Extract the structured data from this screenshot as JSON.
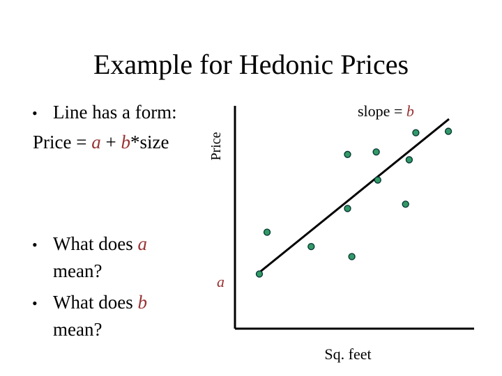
{
  "title": "Example for Hedonic Prices",
  "bullets": {
    "symbol": "•",
    "line_form": "Line has a form:",
    "price_eq": {
      "lhs": "Price = ",
      "a": "a",
      "plus": " + ",
      "b": "b",
      "rhs": "*size"
    },
    "q1": {
      "pre": "What does ",
      "var": "a",
      "post": "mean?"
    },
    "q2": {
      "pre": "What does ",
      "var": "b",
      "post": "mean?"
    }
  },
  "colors": {
    "accent": "#993333",
    "point_fill": "#339966",
    "point_stroke": "#003333",
    "axis": "#000000"
  },
  "chart_data": {
    "type": "scatter",
    "xlabel": "Sq. feet",
    "ylabel": "Price",
    "xlim": [
      0,
      100
    ],
    "ylim": [
      0,
      100
    ],
    "grid": false,
    "legend": "none",
    "points": [
      {
        "x": 11.4,
        "y": 26.7
      },
      {
        "x": 15.0,
        "y": 47.1
      },
      {
        "x": 35.6,
        "y": 40.1
      },
      {
        "x": 52.6,
        "y": 58.7
      },
      {
        "x": 54.6,
        "y": 35.2
      },
      {
        "x": 52.6,
        "y": 85.1
      },
      {
        "x": 66.7,
        "y": 72.6
      },
      {
        "x": 66.0,
        "y": 86.3
      },
      {
        "x": 79.7,
        "y": 60.8
      },
      {
        "x": 81.4,
        "y": 82.5
      },
      {
        "x": 84.5,
        "y": 95.7
      },
      {
        "x": 99.7,
        "y": 96.4
      }
    ],
    "fit_line": {
      "label_slope": "slope = ",
      "slope_var": "b",
      "label_intercept": "a",
      "x": [
        10,
        100
      ],
      "y": [
        26.3,
        102.4
      ]
    }
  }
}
